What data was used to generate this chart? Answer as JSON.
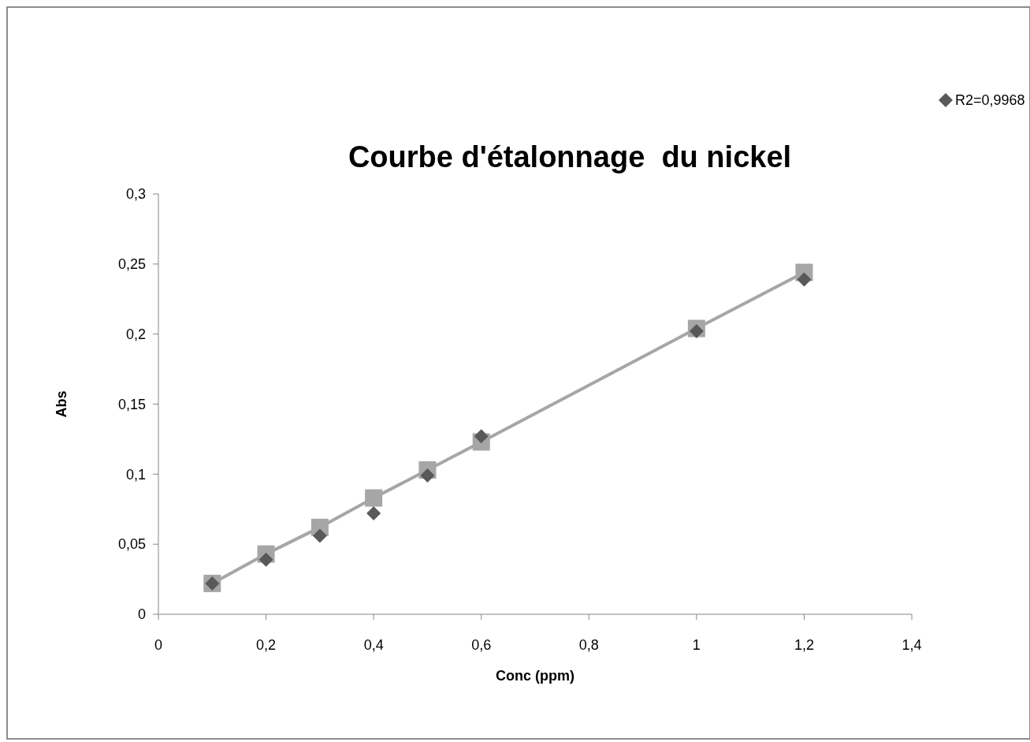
{
  "chart_data": {
    "type": "scatter",
    "title": "Courbe d'étalonnage  du nickel",
    "xlabel": "Conc (ppm)",
    "ylabel": "Abs",
    "xlim": [
      0,
      1.4
    ],
    "ylim": [
      0,
      0.3
    ],
    "xticks": [
      0,
      {
        "value": 0.2,
        "label": "0,2"
      },
      {
        "value": 0.4,
        "label": "0,4"
      },
      {
        "value": 0.6,
        "label": "0,6"
      },
      {
        "value": 0.8,
        "label": "0,8"
      },
      1,
      {
        "value": 1.2,
        "label": "1,2"
      },
      {
        "value": 1.4,
        "label": "1,4"
      }
    ],
    "yticks": [
      0,
      {
        "value": 0.05,
        "label": "0,05"
      },
      {
        "value": 0.1,
        "label": "0,1"
      },
      {
        "value": 0.15,
        "label": "0,15"
      },
      {
        "value": 0.2,
        "label": "0,2"
      },
      {
        "value": 0.25,
        "label": "0,25"
      },
      {
        "value": 0.3,
        "label": "0,3"
      }
    ],
    "grid": false,
    "legend": "top right",
    "series": [
      {
        "type": "line",
        "marker": "square",
        "color": "#a6a6a6",
        "x": [
          0.1,
          0.2,
          0.3,
          0.4,
          0.5,
          0.6,
          1,
          1.2
        ],
        "values": [
          0.022,
          0.043,
          0.062,
          0.083,
          0.103,
          0.123,
          0.204,
          0.244
        ]
      },
      {
        "type": "scatter",
        "name": "R2=0,9968",
        "marker": "diamond",
        "color": "#595959",
        "x": [
          0.1,
          0.2,
          0.3,
          0.4,
          0.5,
          0.6,
          1,
          1.2
        ],
        "values": [
          0.022,
          0.039,
          0.056,
          0.072,
          0.099,
          0.127,
          0.202,
          0.239
        ]
      }
    ]
  }
}
